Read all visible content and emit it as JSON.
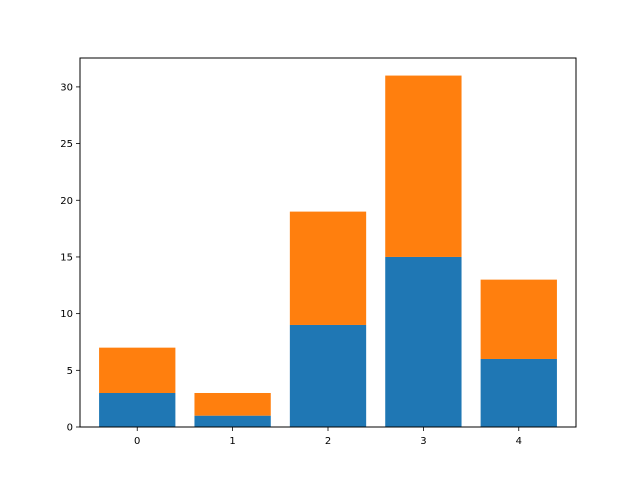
{
  "chart_data": {
    "type": "bar",
    "stacked": true,
    "title": "",
    "xlabel": "",
    "ylabel": "",
    "categories": [
      "0",
      "1",
      "2",
      "3",
      "4"
    ],
    "series": [
      {
        "values": [
          3,
          1,
          9,
          15,
          6
        ],
        "color": "#1f77b4"
      },
      {
        "values": [
          4,
          2,
          10,
          16,
          7
        ],
        "color": "#ff7f0e"
      }
    ],
    "xlim": [
      -0.6,
      4.6
    ],
    "ylim": [
      0,
      32.55
    ],
    "xticks": [
      "0",
      "1",
      "2",
      "3",
      "4"
    ],
    "yticks": [
      "0",
      "5",
      "10",
      "15",
      "20",
      "25",
      "30"
    ],
    "grid": false,
    "legend": "none"
  }
}
